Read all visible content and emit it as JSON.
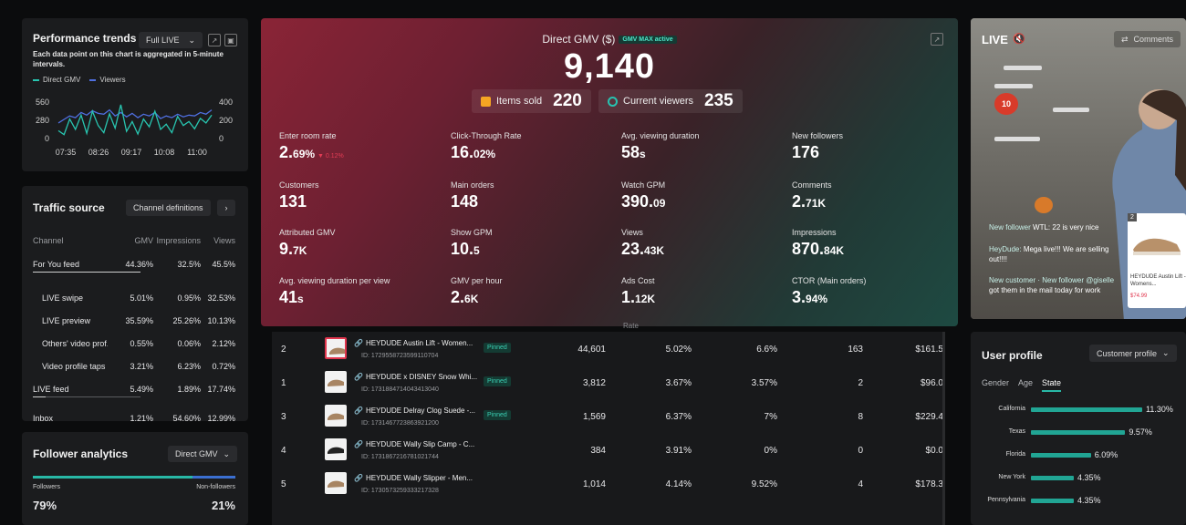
{
  "perf": {
    "title": "Performance trends",
    "range": "Full LIVE",
    "desc": "Each data point on this chart is aggregated in 5-minute intervals.",
    "legend": [
      {
        "label": "Direct GMV",
        "color": "#28c5b0"
      },
      {
        "label": "Viewers",
        "color": "#4f6fe0"
      }
    ],
    "y_left": [
      "560",
      "280",
      "0"
    ],
    "y_right": [
      "400",
      "200",
      "0"
    ],
    "x_ticks": [
      "07:35",
      "08:26",
      "09:17",
      "10:08",
      "11:00"
    ],
    "gmv_series": [
      120,
      60,
      300,
      140,
      360,
      80,
      420,
      200,
      90,
      380,
      160,
      520,
      110,
      260,
      70,
      300,
      180,
      420,
      140,
      220,
      90,
      340,
      200,
      260,
      150,
      310,
      240,
      360
    ],
    "viewers_series": [
      180,
      220,
      260,
      240,
      300,
      270,
      320,
      290,
      280,
      330,
      260,
      300,
      250,
      290,
      240,
      280,
      260,
      300,
      230,
      260,
      240,
      280,
      250,
      270,
      260,
      300,
      280,
      330
    ]
  },
  "traffic": {
    "title": "Traffic source",
    "channel_btn": "Channel definitions",
    "headers": [
      "Channel",
      "GMV",
      "Impressions",
      "Views"
    ],
    "rows": [
      {
        "name": "For You feed",
        "gmv": "44.36%",
        "imp": "32.5%",
        "views": "45.5%",
        "indent": false,
        "bar": 1.0
      },
      {
        "name": "LIVE swipe",
        "gmv": "5.01%",
        "imp": "0.95%",
        "views": "32.53%",
        "indent": true
      },
      {
        "name": "LIVE preview",
        "gmv": "35.59%",
        "imp": "25.26%",
        "views": "10.13%",
        "indent": true
      },
      {
        "name": "Others' video prof...",
        "gmv": "0.55%",
        "imp": "0.06%",
        "views": "2.12%",
        "indent": true
      },
      {
        "name": "Video profile taps",
        "gmv": "3.21%",
        "imp": "6.23%",
        "views": "0.72%",
        "indent": true
      },
      {
        "name": "LIVE feed",
        "gmv": "5.49%",
        "imp": "1.89%",
        "views": "17.74%",
        "indent": false,
        "bar": 0.12
      },
      {
        "name": "Inbox",
        "gmv": "1.21%",
        "imp": "54.60%",
        "views": "12.99%",
        "indent": false
      }
    ]
  },
  "follower": {
    "title": "Follower analytics",
    "dropdown": "Direct GMV",
    "followers_label": "Followers",
    "nonfollowers_label": "Non-followers",
    "followers_value": "79%",
    "nonfollowers_value": "21%",
    "followers_share": 0.79
  },
  "main": {
    "gmv_label": "Direct GMV ($)",
    "gmv_badge": "GMV MAX active",
    "gmv_value": "9,140",
    "items_sold_label": "Items sold",
    "items_sold_value": "220",
    "viewers_label": "Current viewers",
    "viewers_value": "235",
    "metrics": [
      {
        "label": "Enter room rate",
        "value": "2.",
        "small": "69%",
        "note": "▼ 0.12%"
      },
      {
        "label": "Click-Through Rate",
        "value": "16.",
        "small": "02%"
      },
      {
        "label": "Avg. viewing duration",
        "value": "58",
        "small": "s"
      },
      {
        "label": "New followers",
        "value": "176",
        "small": ""
      },
      {
        "label": "Customers",
        "value": "131",
        "small": ""
      },
      {
        "label": "Main orders",
        "value": "148",
        "small": ""
      },
      {
        "label": "Watch GPM",
        "value": "390.",
        "small": "09"
      },
      {
        "label": "Comments",
        "value": "2.",
        "small": "71K"
      },
      {
        "label": "Attributed GMV",
        "value": "9.",
        "small": "7K"
      },
      {
        "label": "Show GPM",
        "value": "10.",
        "small": "5"
      },
      {
        "label": "Views",
        "value": "23.",
        "small": "43K"
      },
      {
        "label": "Impressions",
        "value": "870.",
        "small": "84K"
      },
      {
        "label": "Avg. viewing duration per view",
        "value": "41",
        "small": "s"
      },
      {
        "label": "GMV per hour",
        "value": "2.",
        "small": "6K"
      },
      {
        "label": "Ads Cost",
        "value": "1.",
        "small": "12K"
      },
      {
        "label": "CTOR (Main orders)",
        "value": "3.",
        "small": "94%"
      }
    ]
  },
  "table": {
    "rate_header": "Rate",
    "pinned_label": "Pinned",
    "rows": [
      {
        "rank": "2",
        "name": "HEYDUDE Austin Lift - Women...",
        "id": "ID: 1729558723599110704",
        "pinned": true,
        "c1": "44,601",
        "c2": "5.02%",
        "c3": "6.6%",
        "c4": "163",
        "c5": "$161.5",
        "hl": true
      },
      {
        "rank": "1",
        "name": "HEYDUDE x DISNEY Snow Whi...",
        "id": "ID: 1731884714043413040",
        "pinned": true,
        "c1": "3,812",
        "c2": "3.67%",
        "c3": "3.57%",
        "c4": "2",
        "c5": "$96.0",
        "hl": false
      },
      {
        "rank": "3",
        "name": "HEYDUDE Delray Clog Suede -...",
        "id": "ID: 1731467723863921200",
        "pinned": true,
        "c1": "1,569",
        "c2": "6.37%",
        "c3": "7%",
        "c4": "8",
        "c5": "$229.4",
        "hl": false
      },
      {
        "rank": "4",
        "name": "HEYDUDE Wally Slip Camp - C...",
        "id": "ID: 1731867216781021744",
        "pinned": false,
        "c1": "384",
        "c2": "3.91%",
        "c3": "0%",
        "c4": "0",
        "c5": "$0.0",
        "hl": false
      },
      {
        "rank": "5",
        "name": "HEYDUDE Wally Slipper - Men...",
        "id": "ID: 1730573259333217328",
        "pinned": false,
        "c1": "1,014",
        "c2": "4.14%",
        "c3": "9.52%",
        "c4": "4",
        "c5": "$178.3",
        "hl": false
      }
    ]
  },
  "live": {
    "title": "LIVE",
    "comments_label": "Comments",
    "comment_lines": [
      {
        "user": "New follower",
        "text": "WTL: 22 is very nice"
      },
      {
        "user": "HeyDude:",
        "text": "Mega live!!! We are selling out!!!!"
      },
      {
        "user": "New customer · New follower @giselle",
        "text": "got them in the mail today for work"
      }
    ],
    "card_index": "2",
    "card_name": "HEYDUDE Austin Lift - Womens...",
    "card_price": "$74.99",
    "sign_text": "10"
  },
  "profile": {
    "title": "User profile",
    "dropdown": "Customer profile",
    "tabs": [
      "Gender",
      "Age",
      "State"
    ],
    "states": [
      {
        "name": "California",
        "pct": "11.30%",
        "value": 11.3
      },
      {
        "name": "Texas",
        "pct": "9.57%",
        "value": 9.57
      },
      {
        "name": "Florida",
        "pct": "6.09%",
        "value": 6.09
      },
      {
        "name": "New York",
        "pct": "4.35%",
        "value": 4.35
      },
      {
        "name": "Pennsylvania",
        "pct": "4.35%",
        "value": 4.35
      }
    ]
  }
}
